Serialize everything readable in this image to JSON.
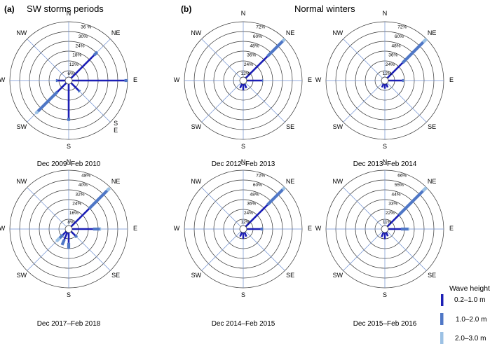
{
  "panel_a": {
    "letter": "(a)",
    "title": "SW  storms periods"
  },
  "panel_b": {
    "letter": "(b)",
    "title": "Normal  winters"
  },
  "colors": {
    "bin1": "#1c1fb5",
    "bin2": "#4f77c6",
    "bin3": "#9cc1e4",
    "axis": "#6f8fd0",
    "ring": "#333333"
  },
  "legend": {
    "title": "Wave height",
    "items": [
      {
        "label": "0.2–1.0 m",
        "color": "#1c1fb5"
      },
      {
        "label": "1.0–2.0 m",
        "color": "#4f77c6"
      },
      {
        "label": "2.0–3.0 m",
        "color": "#9cc1e4"
      }
    ]
  },
  "chart_data": [
    {
      "type": "rose",
      "caption": "Dec 2009–Feb 2010",
      "direction_labels": [
        "N",
        "NE",
        "E",
        "S\nE",
        "S",
        "SW",
        "W",
        "NW"
      ],
      "rings": [
        "6%",
        "12%",
        "18%",
        "24%",
        "30%",
        "36 %"
      ],
      "rmax": 36,
      "bars": [
        {
          "dir": 45,
          "segments": [
            21,
            24
          ]
        },
        {
          "dir": 90,
          "segments": [
            34,
            36
          ]
        },
        {
          "dir": 135,
          "segments": [
            7,
            8
          ]
        },
        {
          "dir": 180,
          "segments": [
            22,
            24
          ]
        },
        {
          "dir": 225,
          "segments": [
            8,
            26,
            28
          ]
        },
        {
          "dir": 270,
          "segments": [
            5,
            6
          ]
        }
      ]
    },
    {
      "type": "rose",
      "caption": "Dec 2012–Feb 2013",
      "direction_labels": [
        "N",
        "NE",
        "E",
        "SE",
        "S",
        "SW",
        "W",
        "NW"
      ],
      "rings": [
        "12%",
        "24%",
        "36%",
        "48%",
        "60%",
        "72%"
      ],
      "rmax": 72,
      "bars": [
        {
          "dir": 45,
          "segments": [
            40,
            68,
            72
          ]
        },
        {
          "dir": 90,
          "segments": [
            20,
            21
          ]
        },
        {
          "dir": 157.5,
          "segments": [
            6
          ]
        },
        {
          "dir": 180,
          "segments": [
            8
          ]
        },
        {
          "dir": 202.5,
          "segments": [
            6
          ]
        }
      ]
    },
    {
      "type": "rose",
      "caption": "Dec 2013–Feb 2014",
      "direction_labels": [
        "N",
        "NE",
        "E",
        "SE",
        "S",
        "SW",
        "W",
        "NW"
      ],
      "rings": [
        "12%",
        "24%",
        "36%",
        "48%",
        "60%",
        "72%"
      ],
      "rmax": 72,
      "bars": [
        {
          "dir": 45,
          "segments": [
            28,
            66,
            72
          ]
        },
        {
          "dir": 90,
          "segments": [
            18,
            20
          ]
        },
        {
          "dir": 157.5,
          "segments": [
            5
          ]
        },
        {
          "dir": 180,
          "segments": [
            6
          ]
        },
        {
          "dir": 202.5,
          "segments": [
            5
          ]
        }
      ]
    },
    {
      "type": "rose",
      "caption": "Dec 2017–Feb 2018",
      "direction_labels": [
        "N",
        "NE",
        "E",
        "SE",
        "S",
        "SW",
        "W",
        "NW"
      ],
      "rings": [
        "8%",
        "16%",
        "24%",
        "32%",
        "40%",
        "48%"
      ],
      "rmax": 48,
      "bars": [
        {
          "dir": 45,
          "segments": [
            22,
            44,
            47
          ]
        },
        {
          "dir": 90,
          "segments": [
            18,
            24,
            25
          ]
        },
        {
          "dir": 135,
          "segments": [
            5,
            7
          ]
        },
        {
          "dir": 180,
          "segments": [
            9,
            14
          ]
        },
        {
          "dir": 202.5,
          "segments": [
            7,
            12
          ]
        },
        {
          "dir": 225,
          "segments": [
            4,
            8,
            12
          ]
        }
      ]
    },
    {
      "type": "rose",
      "caption": "Dec 2014–Feb 2015",
      "direction_labels": [
        "N",
        "NE",
        "E",
        "SE",
        "S",
        "SW",
        "W",
        "NW"
      ],
      "rings": [
        "12%",
        "24%",
        "36%",
        "48%",
        "60%",
        "72%"
      ],
      "rmax": 72,
      "bars": [
        {
          "dir": 45,
          "segments": [
            40,
            68,
            72
          ]
        },
        {
          "dir": 90,
          "segments": [
            18,
            21
          ]
        },
        {
          "dir": 157.5,
          "segments": [
            6
          ]
        },
        {
          "dir": 180,
          "segments": [
            8
          ]
        },
        {
          "dir": 202.5,
          "segments": [
            6
          ]
        }
      ]
    },
    {
      "type": "rose",
      "caption": "Dec 2015–Feb 2016",
      "direction_labels": [
        "N",
        "NE",
        "E",
        "SE",
        "S",
        "SW",
        "W",
        "NW"
      ],
      "rings": [
        "11%",
        "22%",
        "33%",
        "44%",
        "55%",
        "66%"
      ],
      "rmax": 66,
      "bars": [
        {
          "dir": 45,
          "segments": [
            20,
            60,
            66
          ]
        },
        {
          "dir": 90,
          "segments": [
            15,
            24,
            25
          ]
        },
        {
          "dir": 157.5,
          "segments": [
            5
          ]
        },
        {
          "dir": 180,
          "segments": [
            8
          ]
        },
        {
          "dir": 202.5,
          "segments": [
            6
          ]
        }
      ]
    }
  ]
}
